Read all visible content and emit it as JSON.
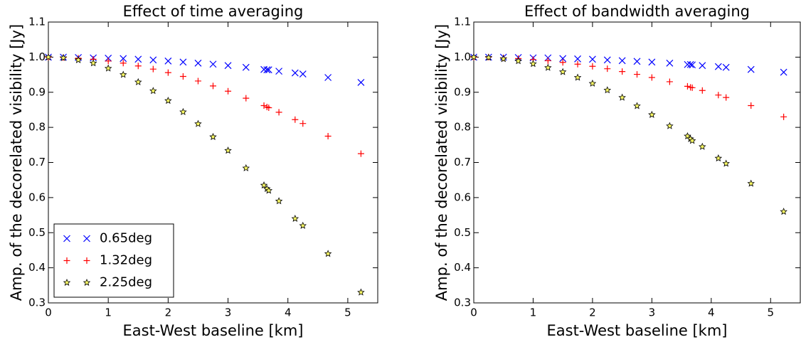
{
  "chart_data": [
    {
      "type": "scatter",
      "title": "Effect of time averaging",
      "x_label": "East-West baseline [km]",
      "y_label": "Amp. of the decorelated visibility [Jy]",
      "xlim": [
        0,
        5.5
      ],
      "ylim": [
        0.3,
        1.1
      ],
      "xticks": [
        0,
        1,
        2,
        3,
        4,
        5
      ],
      "yticks": [
        0.3,
        0.4,
        0.5,
        0.6,
        0.7,
        0.8,
        0.9,
        {
          "value": 1,
          "label": "1.0"
        },
        1.1
      ],
      "legend": "lower left",
      "x": [
        0,
        0.25,
        0.5,
        0.75,
        1,
        1.25,
        1.5,
        1.75,
        2,
        2.25,
        2.5,
        2.75,
        3,
        3.3,
        3.6,
        3.65,
        3.68,
        3.85,
        4.12,
        4.25,
        4.67,
        5.22
      ],
      "series": [
        {
          "name": "0.65deg",
          "color": "#0000ff",
          "marker": "x",
          "values": [
            1,
            1.0,
            0.999,
            0.998,
            0.997,
            0.996,
            0.994,
            0.992,
            0.989,
            0.986,
            0.983,
            0.98,
            0.976,
            0.971,
            0.965,
            0.964,
            0.964,
            0.96,
            0.955,
            0.952,
            0.942,
            0.928
          ]
        },
        {
          "name": "1.32deg",
          "color": "#ff0000",
          "marker": "+",
          "values": [
            1,
            0.999,
            0.997,
            0.994,
            0.989,
            0.983,
            0.975,
            0.966,
            0.956,
            0.945,
            0.932,
            0.918,
            0.903,
            0.883,
            0.862,
            0.858,
            0.856,
            0.843,
            0.822,
            0.811,
            0.775,
            0.725
          ]
        },
        {
          "name": "2.25deg",
          "color": "#000000",
          "fill": "#ffff66",
          "marker": "*",
          "values": [
            1,
            0.998,
            0.992,
            0.983,
            0.968,
            0.95,
            0.929,
            0.904,
            0.876,
            0.844,
            0.81,
            0.773,
            0.734,
            0.684,
            0.635,
            0.625,
            0.62,
            0.59,
            0.54,
            0.52,
            0.44,
            0.33
          ]
        }
      ]
    },
    {
      "type": "scatter",
      "title": "Effect of bandwidth averaging",
      "x_label": "East-West baseline [km]",
      "y_label": "Amp. of the decorelated visibility [Jy]",
      "xlim": [
        0,
        5.5
      ],
      "ylim": [
        0.3,
        1.1
      ],
      "xticks": [
        0,
        1,
        2,
        3,
        4,
        5
      ],
      "yticks": [
        0.3,
        0.4,
        0.5,
        0.6,
        0.7,
        0.8,
        0.9,
        {
          "value": 1,
          "label": "1.0"
        },
        1.1
      ],
      "x": [
        0,
        0.25,
        0.5,
        0.75,
        1,
        1.25,
        1.5,
        1.75,
        2,
        2.25,
        2.5,
        2.75,
        3,
        3.3,
        3.6,
        3.65,
        3.68,
        3.85,
        4.12,
        4.25,
        4.67,
        5.22
      ],
      "series": [
        {
          "color": "#0000ff",
          "marker": "x",
          "values": [
            1,
            1.0,
            1.0,
            0.999,
            0.998,
            0.998,
            0.996,
            0.995,
            0.994,
            0.992,
            0.99,
            0.988,
            0.986,
            0.983,
            0.979,
            0.979,
            0.978,
            0.976,
            0.973,
            0.971,
            0.965,
            0.957
          ]
        },
        {
          "color": "#ff0000",
          "marker": "+",
          "values": [
            1,
            1.0,
            0.998,
            0.996,
            0.993,
            0.99,
            0.985,
            0.98,
            0.974,
            0.967,
            0.959,
            0.951,
            0.942,
            0.93,
            0.917,
            0.914,
            0.913,
            0.905,
            0.892,
            0.885,
            0.862,
            0.83
          ]
        },
        {
          "color": "#000000",
          "fill": "#ffff66",
          "marker": "*",
          "values": [
            1,
            0.999,
            0.995,
            0.989,
            0.981,
            0.97,
            0.958,
            0.942,
            0.925,
            0.906,
            0.885,
            0.861,
            0.836,
            0.804,
            0.775,
            0.767,
            0.762,
            0.745,
            0.712,
            0.697,
            0.64,
            0.56
          ]
        }
      ]
    }
  ]
}
